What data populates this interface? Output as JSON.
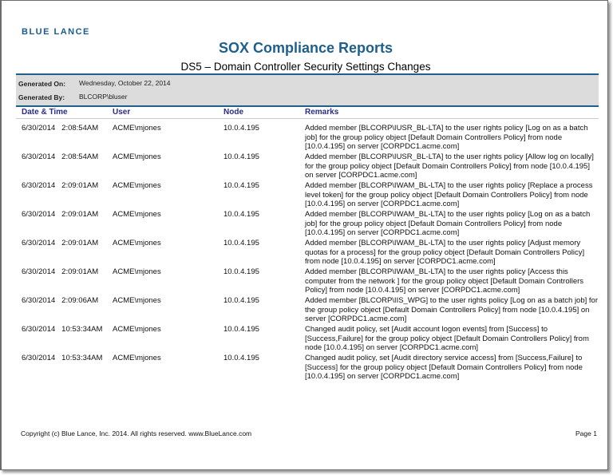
{
  "logo": "BLUE LANCE",
  "title": "SOX Compliance Reports",
  "subtitle": "DS5 – Domain Controller Security Settings Changes",
  "meta": {
    "generated_on_label": "Generated On:",
    "generated_on": "Wednesday, October 22, 2014",
    "generated_by_label": "Generated By:",
    "generated_by": "BLCORP\\bluser"
  },
  "columns": [
    "Date & Time",
    "User",
    "Node",
    "Remarks"
  ],
  "rows": [
    {
      "date": "6/30/2014   2:08:54AM",
      "user": "ACME\\mjones",
      "node": "10.0.4.195",
      "remarks": "Added member  [BLCORP\\IUSR_BL-LTA] to the user rights policy [Log on as a batch job] for the group policy object  [Default Domain Controllers Policy] from node [10.0.4.195] on server [CORPDC1.acme.com]"
    },
    {
      "date": "6/30/2014   2:08:54AM",
      "user": "ACME\\mjones",
      "node": "10.0.4.195",
      "remarks": "Added member  [BLCORP\\IUSR_BL-LTA] to the user rights policy [Allow log on locally] for the group policy object  [Default Domain Controllers Policy] from node [10.0.4.195] on server [CORPDC1.acme.com]"
    },
    {
      "date": "6/30/2014   2:09:01AM",
      "user": "ACME\\mjones",
      "node": "10.0.4.195",
      "remarks": "Added member  [BLCORP\\IWAM_BL-LTA] to the user rights policy [Replace a process level token] for the group policy object  [Default Domain Controllers Policy] from node  [10.0.4.195] on server [CORPDC1.acme.com]"
    },
    {
      "date": "6/30/2014   2:09:01AM",
      "user": "ACME\\mjones",
      "node": "10.0.4.195",
      "remarks": "Added member  [BLCORP\\IWAM_BL-LTA] to the user rights policy [Log on as a batch job] for the group policy object  [Default Domain Controllers Policy] from node [10.0.4.195] on server [CORPDC1.acme.com]"
    },
    {
      "date": "6/30/2014   2:09:01AM",
      "user": "ACME\\mjones",
      "node": "10.0.4.195",
      "remarks": "Added member  [BLCORP\\IWAM_BL-LTA] to the user rights policy [Adjust memory quotas for a process] for the group policy object  [Default Domain Controllers Policy] from node  [10.0.4.195] on server [CORPDC1.acme.com]"
    },
    {
      "date": "6/30/2014   2:09:01AM",
      "user": "ACME\\mjones",
      "node": "10.0.4.195",
      "remarks": "Added member  [BLCORP\\IWAM_BL-LTA] to the user rights policy [Access this computer from the network ] for the group policy object  [Default Domain Controllers Policy] from node  [10.0.4.195] on server [CORPDC1.acme.com]"
    },
    {
      "date": "6/30/2014   2:09:06AM",
      "user": "ACME\\mjones",
      "node": "10.0.4.195",
      "remarks": "Added member  [BLCORP\\IIS_WPG] to the user rights policy [Log on as a batch job] for the group policy object  [Default Domain Controllers Policy] from node  [10.0.4.195] on server [CORPDC1.acme.com]"
    },
    {
      "date": "6/30/2014   10:53:34AM",
      "user": "ACME\\mjones",
      "node": "10.0.4.195",
      "remarks": "Changed audit policy, set  [Audit account logon events]  from [Success] to [Success,Failure] for the group policy object  [Default Domain Controllers Policy]  from node [10.0.4.195] on server  [CORPDC1.acme.com]"
    },
    {
      "date": "6/30/2014   10:53:34AM",
      "user": "ACME\\mjones",
      "node": "10.0.4.195",
      "remarks": "Changed audit policy, set  [Audit directory service access]  from [Success,Failure] to [Success] for the group policy object  [Default Domain Controllers Policy] from node [10.0.4.195] on server [CORPDC1.acme.com]"
    }
  ],
  "footer": {
    "copyright": "Copyright (c) Blue Lance, Inc. 2014. All rights reserved. www.BlueLance.com",
    "page": "Page 1"
  }
}
